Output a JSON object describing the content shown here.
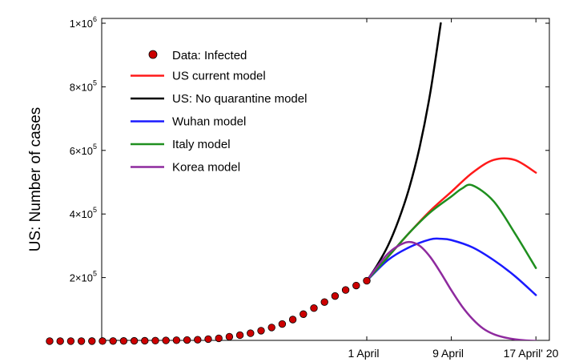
{
  "chart_data": {
    "type": "line",
    "title": "",
    "xlabel": "",
    "ylabel": "US: Number of cases",
    "ylim": [
      0,
      1000000
    ],
    "y_ticks": [
      {
        "value": 200000,
        "mant": "2",
        "exp": "5"
      },
      {
        "value": 400000,
        "mant": "4",
        "exp": "5"
      },
      {
        "value": 600000,
        "mant": "6",
        "exp": "5"
      },
      {
        "value": 800000,
        "mant": "8",
        "exp": "5"
      },
      {
        "value": 1000000,
        "mant": "1",
        "exp": "6"
      }
    ],
    "x_ticks": [
      {
        "value": "2020-04-01",
        "label": "1 April"
      },
      {
        "value": "2020-04-09",
        "label": "9 April"
      },
      {
        "value": "2020-04-17",
        "label": "17 April' 20"
      }
    ],
    "xlim": [
      "2020-03-02",
      "2020-04-17"
    ],
    "grid": false,
    "legend_position": "top-left",
    "colors": {
      "data_fill": "#cc0000",
      "us_current": "#ff1a1a",
      "no_quarantine": "#000000",
      "wuhan": "#1a1aff",
      "italy": "#1f8f1f",
      "korea": "#8e2a9e"
    },
    "data": {
      "name": "Data: Infected",
      "x": [
        "2020-03-02",
        "2020-03-03",
        "2020-03-04",
        "2020-03-05",
        "2020-03-06",
        "2020-03-07",
        "2020-03-08",
        "2020-03-09",
        "2020-03-10",
        "2020-03-11",
        "2020-03-12",
        "2020-03-13",
        "2020-03-14",
        "2020-03-15",
        "2020-03-16",
        "2020-03-17",
        "2020-03-18",
        "2020-03-19",
        "2020-03-20",
        "2020-03-21",
        "2020-03-22",
        "2020-03-23",
        "2020-03-24",
        "2020-03-25",
        "2020-03-26",
        "2020-03-27",
        "2020-03-28",
        "2020-03-29",
        "2020-03-30",
        "2020-03-31",
        "2020-04-01"
      ],
      "y": [
        100,
        120,
        160,
        220,
        300,
        400,
        550,
        700,
        1000,
        1300,
        1700,
        2300,
        3000,
        3700,
        4600,
        6500,
        9000,
        14000,
        19000,
        25000,
        33000,
        43000,
        54000,
        68000,
        85000,
        104000,
        123000,
        142000,
        161000,
        175000,
        190000
      ]
    },
    "series": [
      {
        "name": "US current model",
        "x": [
          "2020-04-01",
          "2020-04-03",
          "2020-04-05",
          "2020-04-07",
          "2020-04-09",
          "2020-04-11",
          "2020-04-13",
          "2020-04-15",
          "2020-04-17"
        ],
        "y": [
          190000,
          265000,
          340000,
          410000,
          470000,
          530000,
          570000,
          570000,
          530000
        ]
      },
      {
        "name": "US: No quarantine model",
        "x": [
          "2020-04-01",
          "2020-04-02",
          "2020-04-03",
          "2020-04-04",
          "2020-04-05",
          "2020-04-06",
          "2020-04-07",
          "2020-04-08"
        ],
        "y": [
          190000,
          240000,
          300000,
          380000,
          480000,
          610000,
          780000,
          1000000
        ]
      },
      {
        "name": "Wuhan model",
        "x": [
          "2020-04-01",
          "2020-04-03",
          "2020-04-05",
          "2020-04-07",
          "2020-04-08",
          "2020-04-09",
          "2020-04-11",
          "2020-04-13",
          "2020-04-15",
          "2020-04-17"
        ],
        "y": [
          190000,
          255000,
          295000,
          320000,
          322000,
          318000,
          295000,
          255000,
          205000,
          145000
        ]
      },
      {
        "name": "Italy model",
        "x": [
          "2020-04-01",
          "2020-04-03",
          "2020-04-05",
          "2020-04-07",
          "2020-04-09",
          "2020-04-10",
          "2020-04-11",
          "2020-04-13",
          "2020-04-15",
          "2020-04-17"
        ],
        "y": [
          190000,
          265000,
          340000,
          405000,
          455000,
          480000,
          490000,
          440000,
          340000,
          230000
        ]
      },
      {
        "name": "Korea model",
        "x": [
          "2020-04-01",
          "2020-04-02",
          "2020-04-03",
          "2020-04-04",
          "2020-04-05",
          "2020-04-06",
          "2020-04-07",
          "2020-04-08",
          "2020-04-09",
          "2020-04-10",
          "2020-04-11",
          "2020-04-12",
          "2020-04-13",
          "2020-04-14",
          "2020-04-15",
          "2020-04-16",
          "2020-04-17"
        ],
        "y": [
          190000,
          235000,
          275000,
          300000,
          312000,
          300000,
          265000,
          215000,
          160000,
          110000,
          70000,
          40000,
          22000,
          12000,
          6000,
          2500,
          1000
        ]
      }
    ]
  }
}
